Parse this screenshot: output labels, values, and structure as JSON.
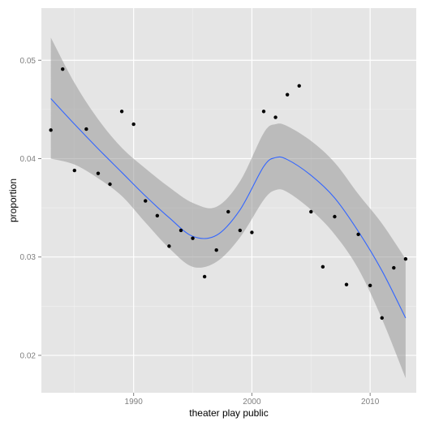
{
  "chart_data": {
    "type": "scatter",
    "xlabel": "theater play public",
    "ylabel": "proportion",
    "xlim": [
      1982.2,
      2013.9
    ],
    "ylim": [
      0.0162,
      0.0553
    ],
    "x_ticks": [
      1990,
      2000,
      2010
    ],
    "x_tick_labels": [
      "1990",
      "2000",
      "2010"
    ],
    "y_ticks": [
      0.02,
      0.03,
      0.04,
      0.05
    ],
    "y_tick_labels": [
      "0.02",
      "0.03",
      "0.04",
      "0.05"
    ],
    "grid": true,
    "points": [
      {
        "x": 1983,
        "y": 0.0429
      },
      {
        "x": 1984,
        "y": 0.0491
      },
      {
        "x": 1985,
        "y": 0.0388
      },
      {
        "x": 1986,
        "y": 0.043
      },
      {
        "x": 1987,
        "y": 0.0385
      },
      {
        "x": 1988,
        "y": 0.0374
      },
      {
        "x": 1989,
        "y": 0.0448
      },
      {
        "x": 1990,
        "y": 0.0435
      },
      {
        "x": 1991,
        "y": 0.0357
      },
      {
        "x": 1992,
        "y": 0.0342
      },
      {
        "x": 1993,
        "y": 0.0311
      },
      {
        "x": 1994,
        "y": 0.0327
      },
      {
        "x": 1995,
        "y": 0.0319
      },
      {
        "x": 1996,
        "y": 0.028
      },
      {
        "x": 1997,
        "y": 0.0307
      },
      {
        "x": 1998,
        "y": 0.0346
      },
      {
        "x": 1999,
        "y": 0.0327
      },
      {
        "x": 2000,
        "y": 0.0325
      },
      {
        "x": 2001,
        "y": 0.0448
      },
      {
        "x": 2002,
        "y": 0.0442
      },
      {
        "x": 2003,
        "y": 0.0465
      },
      {
        "x": 2004,
        "y": 0.0474
      },
      {
        "x": 2005,
        "y": 0.0346
      },
      {
        "x": 2006,
        "y": 0.029
      },
      {
        "x": 2007,
        "y": 0.0341
      },
      {
        "x": 2008,
        "y": 0.0272
      },
      {
        "x": 2009,
        "y": 0.0323
      },
      {
        "x": 2010,
        "y": 0.0271
      },
      {
        "x": 2011,
        "y": 0.0238
      },
      {
        "x": 2012,
        "y": 0.0289
      },
      {
        "x": 2013,
        "y": 0.0298
      }
    ],
    "smooth": {
      "x": [
        1983,
        1985,
        1987,
        1989,
        1991,
        1993,
        1995,
        1997,
        1999,
        2001,
        2002,
        2003,
        2005,
        2007,
        2009,
        2011,
        2013
      ],
      "y": [
        0.0461,
        0.0435,
        0.041,
        0.0386,
        0.0362,
        0.034,
        0.0321,
        0.0322,
        0.0348,
        0.0392,
        0.0401,
        0.0399,
        0.0383,
        0.036,
        0.0326,
        0.0286,
        0.0238
      ],
      "lower": [
        0.04,
        0.0394,
        0.038,
        0.0362,
        0.0335,
        0.0309,
        0.029,
        0.0295,
        0.032,
        0.0358,
        0.0368,
        0.0366,
        0.0348,
        0.0323,
        0.0288,
        0.0237,
        0.0177
      ],
      "upper": [
        0.0523,
        0.0477,
        0.044,
        0.0411,
        0.039,
        0.0371,
        0.0355,
        0.0351,
        0.0377,
        0.0426,
        0.0435,
        0.0433,
        0.0418,
        0.0396,
        0.0364,
        0.0334,
        0.0298
      ]
    },
    "colors": {
      "panel": "#e5e5e5",
      "grid_major": "#ffffff",
      "grid_minor": "#f2f2f2",
      "points": "#000000",
      "line": "#3366ff",
      "ribbon": "#999999"
    }
  }
}
